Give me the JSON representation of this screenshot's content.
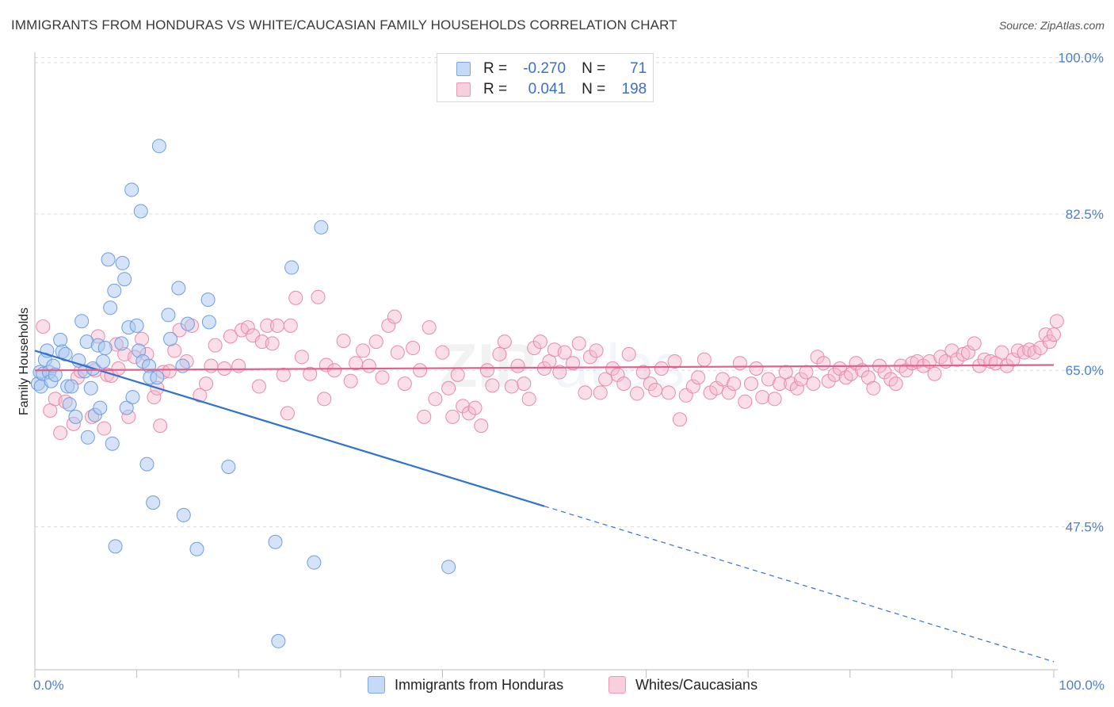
{
  "title": "IMMIGRANTS FROM HONDURAS VS WHITE/CAUCASIAN FAMILY HOUSEHOLDS CORRELATION CHART",
  "source": "Source: ZipAtlas.com",
  "legend": {
    "rows": [
      {
        "r_label": "R =",
        "r_value": "-0.270",
        "n_label": "N =",
        "n_value": "71"
      },
      {
        "r_label": "R =",
        "r_value": "0.041",
        "n_label": "N =",
        "n_value": "198"
      }
    ]
  },
  "colors": {
    "blue_fill": "#aac8f0",
    "blue_stroke": "#6f9de0",
    "blue_line": "#2f72d0",
    "pink_fill": "#f5b8cc",
    "pink_stroke": "#e88aa8",
    "pink_line": "#e0608a",
    "grid": "#dcdcdc",
    "axis_label": "#4a7fd0"
  },
  "chart_data": {
    "type": "scatter",
    "title": "IMMIGRANTS FROM HONDURAS VS WHITE/CAUCASIAN FAMILY HOUSEHOLDS CORRELATION CHART",
    "xlabel": "",
    "ylabel": "Family Households",
    "x_tick_labels": [
      "0.0%",
      "100.0%"
    ],
    "y_tick_labels": [
      "100.0%",
      "82.5%",
      "65.0%",
      "47.5%"
    ],
    "y_ticks": [
      100.0,
      82.5,
      65.0,
      47.5
    ],
    "xlim": [
      0,
      100
    ],
    "ylim": [
      31.5,
      102
    ],
    "grid": true,
    "watermark": "ZIPatlas",
    "series": [
      {
        "name": "Immigrants from Honduras",
        "r": -0.27,
        "n": 71,
        "trend": {
          "x0": 0,
          "y0": 67.2,
          "x1": 50,
          "y1": 49.8,
          "dash_to_x": 100,
          "dash_to_y": 32.4
        },
        "points": [
          [
            0.3,
            63.5
          ],
          [
            0.5,
            64.8
          ],
          [
            0.6,
            63.2
          ],
          [
            0.8,
            64.6
          ],
          [
            1.0,
            66.2
          ],
          [
            1.2,
            67.2
          ],
          [
            1.4,
            64.8
          ],
          [
            1.6,
            63.8
          ],
          [
            1.8,
            65.5
          ],
          [
            2.0,
            64.5
          ],
          [
            2.5,
            68.4
          ],
          [
            2.7,
            67.1
          ],
          [
            3.0,
            66.8
          ],
          [
            3.2,
            63.2
          ],
          [
            3.4,
            61.2
          ],
          [
            3.6,
            63.2
          ],
          [
            4.0,
            59.8
          ],
          [
            4.3,
            66.1
          ],
          [
            4.6,
            70.5
          ],
          [
            4.9,
            64.9
          ],
          [
            5.1,
            68.2
          ],
          [
            5.2,
            57.5
          ],
          [
            5.5,
            63.0
          ],
          [
            5.7,
            65.2
          ],
          [
            5.9,
            60.0
          ],
          [
            6.2,
            67.8
          ],
          [
            6.4,
            60.8
          ],
          [
            6.7,
            66.0
          ],
          [
            6.9,
            67.5
          ],
          [
            7.2,
            77.4
          ],
          [
            7.4,
            72.0
          ],
          [
            7.6,
            56.8
          ],
          [
            7.8,
            73.9
          ],
          [
            7.9,
            45.3
          ],
          [
            8.5,
            68.0
          ],
          [
            8.6,
            77.0
          ],
          [
            8.8,
            75.2
          ],
          [
            9.0,
            60.8
          ],
          [
            9.2,
            69.8
          ],
          [
            9.5,
            85.2
          ],
          [
            9.6,
            62.0
          ],
          [
            10.0,
            70.0
          ],
          [
            10.2,
            67.2
          ],
          [
            10.4,
            82.8
          ],
          [
            10.6,
            66.0
          ],
          [
            11.0,
            54.5
          ],
          [
            11.2,
            65.5
          ],
          [
            11.3,
            64.2
          ],
          [
            11.6,
            50.2
          ],
          [
            12.0,
            64.2
          ],
          [
            12.2,
            90.1
          ],
          [
            13.1,
            71.2
          ],
          [
            13.3,
            68.5
          ],
          [
            14.1,
            74.2
          ],
          [
            14.5,
            65.5
          ],
          [
            14.6,
            48.8
          ],
          [
            15.0,
            70.2
          ],
          [
            15.9,
            45.0
          ],
          [
            17.0,
            72.9
          ],
          [
            17.1,
            70.4
          ],
          [
            19.0,
            54.2
          ],
          [
            23.6,
            45.8
          ],
          [
            23.9,
            34.7
          ],
          [
            25.2,
            76.5
          ],
          [
            27.4,
            43.5
          ],
          [
            28.1,
            81.0
          ],
          [
            40.6,
            43.0
          ]
        ]
      },
      {
        "name": "Whites/Caucasians",
        "r": 0.041,
        "n": 198,
        "trend": {
          "x0": 0,
          "y0": 65.0,
          "x1": 100,
          "y1": 65.6
        },
        "points": [
          [
            0.8,
            69.9
          ],
          [
            1.5,
            60.5
          ],
          [
            2.0,
            61.8
          ],
          [
            2.5,
            58.0
          ],
          [
            3.0,
            61.5
          ],
          [
            3.8,
            59.0
          ],
          [
            4.2,
            64.2
          ],
          [
            4.5,
            64.9
          ],
          [
            5.6,
            59.8
          ],
          [
            5.9,
            65.0
          ],
          [
            6.2,
            68.8
          ],
          [
            6.8,
            58.5
          ],
          [
            7.1,
            64.5
          ],
          [
            7.5,
            64.4
          ],
          [
            8.0,
            67.9
          ],
          [
            8.2,
            65.2
          ],
          [
            8.8,
            66.8
          ],
          [
            9.2,
            59.8
          ],
          [
            9.8,
            66.5
          ],
          [
            10.5,
            68.5
          ],
          [
            11.0,
            66.8
          ],
          [
            11.7,
            62.0
          ],
          [
            12.0,
            63.0
          ],
          [
            12.3,
            58.8
          ],
          [
            12.6,
            64.8
          ],
          [
            13.2,
            64.9
          ],
          [
            13.7,
            67.2
          ],
          [
            14.2,
            69.5
          ],
          [
            14.9,
            66.0
          ],
          [
            15.4,
            70.0
          ],
          [
            16.2,
            62.2
          ],
          [
            16.8,
            63.5
          ],
          [
            17.3,
            65.5
          ],
          [
            17.7,
            67.8
          ],
          [
            18.6,
            65.2
          ],
          [
            19.2,
            68.8
          ],
          [
            20.0,
            65.5
          ],
          [
            20.3,
            69.5
          ],
          [
            20.9,
            69.8
          ],
          [
            21.4,
            68.9
          ],
          [
            22.0,
            63.2
          ],
          [
            22.3,
            68.2
          ],
          [
            22.8,
            70.0
          ],
          [
            23.3,
            68.0
          ],
          [
            23.8,
            70.0
          ],
          [
            24.4,
            64.5
          ],
          [
            24.8,
            60.2
          ],
          [
            25.1,
            70.0
          ],
          [
            25.6,
            73.1
          ],
          [
            26.2,
            66.5
          ],
          [
            27.0,
            64.6
          ],
          [
            27.8,
            73.2
          ],
          [
            28.4,
            61.8
          ],
          [
            28.6,
            65.6
          ],
          [
            29.4,
            65.0
          ],
          [
            30.3,
            68.3
          ],
          [
            31.0,
            63.8
          ],
          [
            31.5,
            65.8
          ],
          [
            32.2,
            67.2
          ],
          [
            32.8,
            65.5
          ],
          [
            33.5,
            68.2
          ],
          [
            34.1,
            64.2
          ],
          [
            34.7,
            70.0
          ],
          [
            35.3,
            71.0
          ],
          [
            35.6,
            67.0
          ],
          [
            36.3,
            63.5
          ],
          [
            37.1,
            67.5
          ],
          [
            37.8,
            65.0
          ],
          [
            38.2,
            59.8
          ],
          [
            38.7,
            69.8
          ],
          [
            39.3,
            61.8
          ],
          [
            40.0,
            67.0
          ],
          [
            40.6,
            63.0
          ],
          [
            41.0,
            59.8
          ],
          [
            41.5,
            64.5
          ],
          [
            42.0,
            61.0
          ],
          [
            42.6,
            60.2
          ],
          [
            43.2,
            60.8
          ],
          [
            43.8,
            58.8
          ],
          [
            44.4,
            65.0
          ],
          [
            44.9,
            63.3
          ],
          [
            45.6,
            66.8
          ],
          [
            46.1,
            68.2
          ],
          [
            46.8,
            63.2
          ],
          [
            47.4,
            65.5
          ],
          [
            48.0,
            63.5
          ],
          [
            48.5,
            61.8
          ],
          [
            49.0,
            67.5
          ],
          [
            49.6,
            68.2
          ],
          [
            50.0,
            65.2
          ],
          [
            50.5,
            66.0
          ],
          [
            51.0,
            67.3
          ],
          [
            51.5,
            64.8
          ],
          [
            52.0,
            67.0
          ],
          [
            52.8,
            65.8
          ],
          [
            53.4,
            68.0
          ],
          [
            54.0,
            62.5
          ],
          [
            54.5,
            66.5
          ],
          [
            55.1,
            67.2
          ],
          [
            55.5,
            62.5
          ],
          [
            56.0,
            64.0
          ],
          [
            56.7,
            65.2
          ],
          [
            57.2,
            64.5
          ],
          [
            57.8,
            63.5
          ],
          [
            58.3,
            66.8
          ],
          [
            59.1,
            62.4
          ],
          [
            59.7,
            64.8
          ],
          [
            60.4,
            63.5
          ],
          [
            60.9,
            62.8
          ],
          [
            61.5,
            65.2
          ],
          [
            62.2,
            62.5
          ],
          [
            62.8,
            66.0
          ],
          [
            63.3,
            59.5
          ],
          [
            63.9,
            62.2
          ],
          [
            64.6,
            63.2
          ],
          [
            65.1,
            64.2
          ],
          [
            65.7,
            66.2
          ],
          [
            66.3,
            62.5
          ],
          [
            66.9,
            63.0
          ],
          [
            67.5,
            64.0
          ],
          [
            68.1,
            62.5
          ],
          [
            68.6,
            63.5
          ],
          [
            69.2,
            65.8
          ],
          [
            69.7,
            61.5
          ],
          [
            70.3,
            63.5
          ],
          [
            70.8,
            65.2
          ],
          [
            71.4,
            62.0
          ],
          [
            72.0,
            64.0
          ],
          [
            72.6,
            61.8
          ],
          [
            73.1,
            63.5
          ],
          [
            73.7,
            64.8
          ],
          [
            74.2,
            63.5
          ],
          [
            74.8,
            63.0
          ],
          [
            75.2,
            64.0
          ],
          [
            75.7,
            64.8
          ],
          [
            76.4,
            63.5
          ],
          [
            76.8,
            66.5
          ],
          [
            77.4,
            65.8
          ],
          [
            77.9,
            63.8
          ],
          [
            78.5,
            64.5
          ],
          [
            79.0,
            65.2
          ],
          [
            79.6,
            64.2
          ],
          [
            80.1,
            64.6
          ],
          [
            80.6,
            65.8
          ],
          [
            81.2,
            65.0
          ],
          [
            81.8,
            64.2
          ],
          [
            82.3,
            63.0
          ],
          [
            82.9,
            65.5
          ],
          [
            83.4,
            64.8
          ],
          [
            84.0,
            64.0
          ],
          [
            84.5,
            63.5
          ],
          [
            85.0,
            65.5
          ],
          [
            85.5,
            65.0
          ],
          [
            86.1,
            65.8
          ],
          [
            86.6,
            66.0
          ],
          [
            87.2,
            65.5
          ],
          [
            87.8,
            66.0
          ],
          [
            88.3,
            64.6
          ],
          [
            88.9,
            66.5
          ],
          [
            89.4,
            66.0
          ],
          [
            90.0,
            67.2
          ],
          [
            90.5,
            66.2
          ],
          [
            91.1,
            66.8
          ],
          [
            91.6,
            67.0
          ],
          [
            92.2,
            68.0
          ],
          [
            92.7,
            65.5
          ],
          [
            93.2,
            66.2
          ],
          [
            93.8,
            66.0
          ],
          [
            94.3,
            65.8
          ],
          [
            94.9,
            67.0
          ],
          [
            95.4,
            65.5
          ],
          [
            96.0,
            66.2
          ],
          [
            96.5,
            67.2
          ],
          [
            97.1,
            67.0
          ],
          [
            97.6,
            67.3
          ],
          [
            98.1,
            67.0
          ],
          [
            98.7,
            67.5
          ],
          [
            99.2,
            69.0
          ],
          [
            99.6,
            68.2
          ],
          [
            100.0,
            69.0
          ],
          [
            100.3,
            70.5
          ]
        ]
      }
    ]
  },
  "bottom_legend": {
    "items": [
      {
        "label": "Immigrants from Honduras"
      },
      {
        "label": "Whites/Caucasians"
      }
    ]
  }
}
